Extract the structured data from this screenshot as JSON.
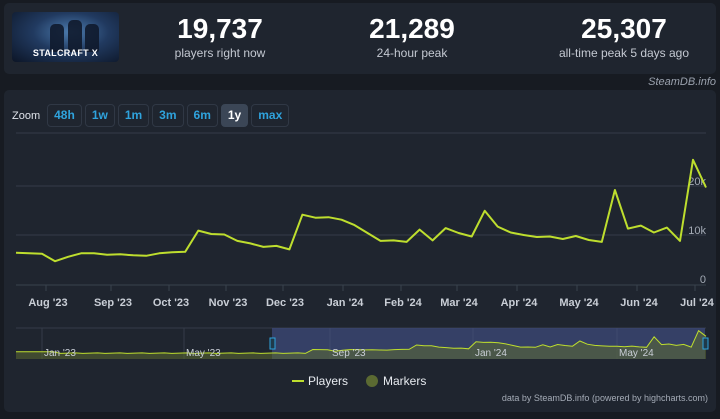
{
  "header": {
    "game_title": "STALCRAFT X",
    "stats": [
      {
        "value": "19,737",
        "label": "players right now"
      },
      {
        "value": "21,289",
        "label": "24-hour peak"
      },
      {
        "value": "25,307",
        "label": "all-time peak 5 days ago"
      }
    ],
    "credit": "SteamDB.info"
  },
  "zoom": {
    "label": "Zoom",
    "buttons": [
      "48h",
      "1w",
      "1m",
      "3m",
      "6m",
      "1y",
      "max"
    ],
    "active": "1y"
  },
  "legend": {
    "players": "Players",
    "markers": "Markers"
  },
  "footer": {
    "credit": "data by SteamDB.info (powered by highcharts.com)"
  },
  "colors": {
    "line": "#bede2e",
    "accent": "#2fa3dd",
    "marker": "#5b6a32"
  },
  "navigator": {
    "labels": [
      "Jan '23",
      "May '23",
      "Sep '23",
      "Jan '24",
      "May '24"
    ]
  },
  "chart_data": {
    "type": "line",
    "title": "",
    "xlabel": "",
    "ylabel": "",
    "x_tick_labels": [
      "Aug '23",
      "Sep '23",
      "Oct '23",
      "Nov '23",
      "Dec '23",
      "Jan '24",
      "Feb '24",
      "Mar '24",
      "Apr '24",
      "May '24",
      "Jun '24",
      "Jul '24"
    ],
    "y_tick_labels": [
      "0",
      "10k",
      "20k"
    ],
    "ylim": [
      0,
      27000
    ],
    "grid": true,
    "legend_position": "bottom-center",
    "series": [
      {
        "name": "Players",
        "x": [
          "2023-07-15",
          "2023-07-22",
          "2023-07-29",
          "2023-08-05",
          "2023-08-12",
          "2023-08-19",
          "2023-08-26",
          "2023-09-02",
          "2023-09-09",
          "2023-09-16",
          "2023-09-23",
          "2023-09-30",
          "2023-10-07",
          "2023-10-14",
          "2023-10-21",
          "2023-10-28",
          "2023-11-04",
          "2023-11-11",
          "2023-11-18",
          "2023-11-25",
          "2023-12-02",
          "2023-12-09",
          "2023-12-16",
          "2023-12-23",
          "2023-12-30",
          "2024-01-06",
          "2024-01-13",
          "2024-01-20",
          "2024-01-27",
          "2024-02-03",
          "2024-02-10",
          "2024-02-17",
          "2024-02-24",
          "2024-03-02",
          "2024-03-09",
          "2024-03-16",
          "2024-03-23",
          "2024-03-30",
          "2024-04-06",
          "2024-04-13",
          "2024-04-20",
          "2024-04-27",
          "2024-05-04",
          "2024-05-11",
          "2024-05-18",
          "2024-05-25",
          "2024-06-01",
          "2024-06-08",
          "2024-06-15",
          "2024-06-22",
          "2024-06-29",
          "2024-07-06",
          "2024-07-13",
          "2024-07-20"
        ],
        "values": [
          6500,
          6400,
          6300,
          4800,
          5700,
          6400,
          6400,
          6100,
          6200,
          6000,
          5900,
          6400,
          6600,
          6700,
          11000,
          10300,
          10200,
          8900,
          8400,
          7700,
          7900,
          7200,
          14200,
          13600,
          13700,
          13200,
          12100,
          10500,
          8900,
          9000,
          8700,
          11200,
          9000,
          11500,
          10500,
          9800,
          15000,
          11800,
          10600,
          10100,
          9700,
          9800,
          9300,
          9900,
          9100,
          8700,
          19200,
          11400,
          12000,
          10600,
          11600,
          8900,
          25300,
          19700
        ]
      },
      {
        "name": "Markers",
        "values": []
      }
    ]
  }
}
